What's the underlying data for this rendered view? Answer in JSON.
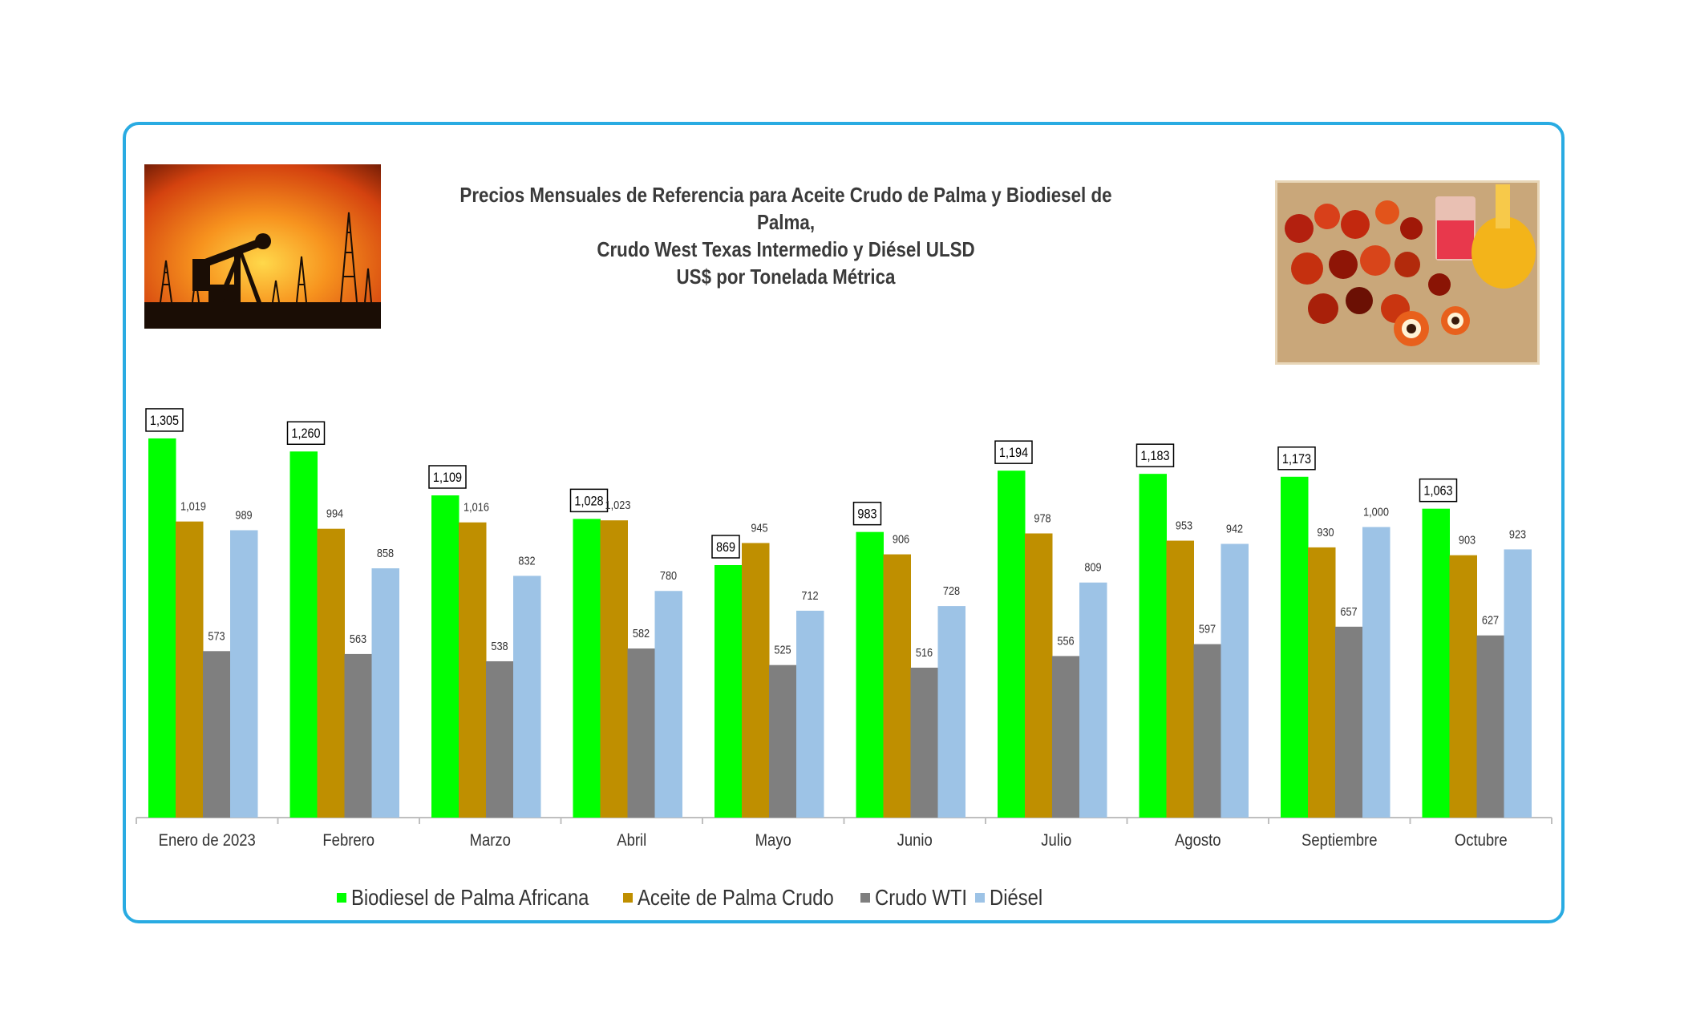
{
  "title_lines": [
    "Precios Mensuales de Referencia para Aceite Crudo de Palma y Biodiesel de Palma,",
    "Crudo West Texas Intermedio y Diésel ULSD",
    "US$ por Tonelada Métrica"
  ],
  "images": {
    "left": "oil-pump-sunset-photo",
    "right": "palm-fruit-and-oil-photo"
  },
  "colors": {
    "frame": "#29abe2",
    "biodiesel": "#00ff00",
    "palm_oil": "#bf8f00",
    "wti": "#7f7f7f",
    "diesel": "#9dc3e6"
  },
  "chart_data": {
    "type": "bar",
    "title": "Precios Mensuales de Referencia para Aceite Crudo de Palma y Biodiesel de Palma, Crudo West Texas Intermedio y Diésel ULSD US$ por Tonelada Métrica",
    "categories": [
      "Enero de 2023",
      "Febrero",
      "Marzo",
      "Abril",
      "Mayo",
      "Junio",
      "Julio",
      "Agosto",
      "Septiembre",
      "Octubre"
    ],
    "series": [
      {
        "name": "Biodiesel de Palma Africana",
        "color": "#00ff00",
        "values": [
          1305,
          1260,
          1109,
          1028,
          869,
          983,
          1194,
          1183,
          1173,
          1063
        ],
        "labels": [
          "1,305",
          "1,260",
          "1,109",
          "1,028",
          "869",
          "983",
          "1,194",
          "1,183",
          "1,173",
          "1,063"
        ]
      },
      {
        "name": "Aceite de Palma Crudo",
        "color": "#bf8f00",
        "values": [
          1019,
          994,
          1016,
          1023,
          945,
          906,
          978,
          953,
          930,
          903
        ],
        "labels": [
          "1,019",
          "994",
          "1,016",
          "1,023",
          "945",
          "906",
          "978",
          "953",
          "930",
          "903"
        ]
      },
      {
        "name": "Crudo WTI",
        "color": "#7f7f7f",
        "values": [
          573,
          563,
          538,
          582,
          525,
          516,
          556,
          597,
          657,
          627
        ],
        "labels": [
          "573",
          "563",
          "538",
          "582",
          "525",
          "516",
          "556",
          "597",
          "657",
          "627"
        ]
      },
      {
        "name": "Diésel",
        "color": "#9dc3e6",
        "values": [
          989,
          858,
          832,
          780,
          712,
          728,
          809,
          942,
          1000,
          923
        ],
        "labels": [
          "989",
          "858",
          "832",
          "780",
          "712",
          "728",
          "809",
          "942",
          "1,000",
          "923"
        ]
      }
    ],
    "ylim": [
      0,
      1400
    ],
    "legend": "bottom"
  }
}
